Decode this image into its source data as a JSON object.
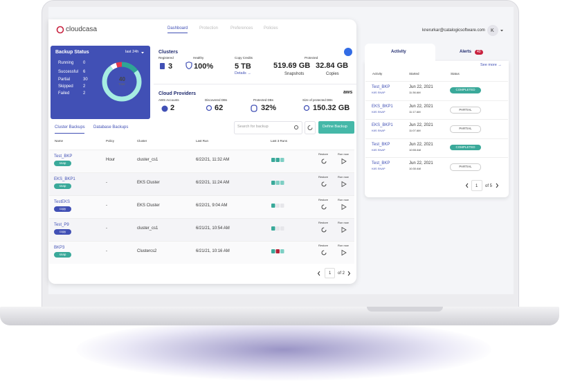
{
  "brand": "cloudcasa",
  "nav": [
    {
      "label": "Dashboard",
      "active": true
    },
    {
      "label": "Protection",
      "active": false
    },
    {
      "label": "Preferences",
      "active": false
    },
    {
      "label": "Policies",
      "active": false
    }
  ],
  "user": {
    "email": "knerurkar@catalogicsoftware.com",
    "initial": "K"
  },
  "backup_status": {
    "title": "Backup Status",
    "period": "last 24h",
    "total": 40,
    "total_label": "Total",
    "rows": [
      {
        "label": "Running",
        "value": 0,
        "color": "#f2c94c"
      },
      {
        "label": "Successful",
        "value": 6,
        "color": "#2fa595"
      },
      {
        "label": "Partial",
        "value": 30,
        "color": "#a6ede2"
      },
      {
        "label": "Skipped",
        "value": 2,
        "color": "#ffffff"
      },
      {
        "label": "Failed",
        "value": 2,
        "color": "#e5394d"
      }
    ]
  },
  "clusters": {
    "title": "Clusters",
    "stats": [
      {
        "label": "Registered",
        "value": "3"
      },
      {
        "label": "Healthy",
        "value": "100%"
      },
      {
        "label": "Copy Credits",
        "value": "5 TB",
        "link": "Details →"
      }
    ],
    "protected": {
      "label": "Protected",
      "snapshots": {
        "value": "519.69 GB",
        "label": "Snapshots"
      },
      "copies": {
        "value": "32.84 GB",
        "label": "Copies"
      }
    }
  },
  "cloud": {
    "title": "Cloud Providers",
    "logo": "aws",
    "stats": [
      {
        "label": "AWS Accounts",
        "value": "2"
      },
      {
        "label": "Discovered DBs",
        "value": "62"
      },
      {
        "label": "Protected DBs",
        "value": "32%"
      },
      {
        "label": "Size of protected DBs",
        "value": "150.32 GB"
      }
    ]
  },
  "backups": {
    "tabs": [
      "Cluster Backups",
      "Database Backups"
    ],
    "search_placeholder": "Search for backup",
    "button": "Define Backup",
    "columns": [
      "Name",
      "Policy",
      "Cluster",
      "Last Run",
      "Last 3 Runs"
    ],
    "actions": [
      "Restore",
      "Run now"
    ],
    "tag_colors": {
      "snap": "#3aa99a",
      "copy": "#4150b5"
    },
    "rows": [
      {
        "name": "Test_BKP",
        "tag": "snap",
        "policy": "Hour",
        "cluster": "cluster_cs1",
        "last_run": "6/22/21, 11:32 AM",
        "runs": [
          "#3aa99a",
          "#3aa99a",
          "#7fcfc4"
        ]
      },
      {
        "name": "EKS_BKP1",
        "tag": "snap",
        "policy": "-",
        "cluster": "EKS Cluster",
        "last_run": "6/22/21, 11:24 AM",
        "runs": [
          "#3aa99a",
          "#7fcfc4",
          "#7fcfc4"
        ]
      },
      {
        "name": "TestEKS",
        "tag": "copy",
        "policy": "-",
        "cluster": "EKS Cluster",
        "last_run": "6/22/21, 9:04 AM",
        "runs": [
          "#3aa99a",
          "#e6e6ea",
          "#e6e6ea"
        ]
      },
      {
        "name": "Test_P9",
        "tag": "copy",
        "policy": "-",
        "cluster": "cluster_cs1",
        "last_run": "6/21/21, 10:54 AM",
        "runs": [
          "#3aa99a",
          "#e6e6ea",
          "#e6e6ea"
        ]
      },
      {
        "name": "BKP3",
        "tag": "snap",
        "policy": "-",
        "cluster": "Clustercs2",
        "last_run": "6/21/21, 10:16 AM",
        "runs": [
          "#3aa99a",
          "#b3243a",
          "#7fcfc4"
        ]
      }
    ],
    "pagination": {
      "page": "1",
      "total": "of 2"
    }
  },
  "activity": {
    "tabs": [
      "Activity",
      "Alerts"
    ],
    "alerts_count": 40,
    "see_more": "See more →",
    "columns": [
      "Activity",
      "Started",
      "Status"
    ],
    "filled_status": {
      "COMPLETED": "#3aa99a"
    },
    "rows": [
      {
        "name": "Test_BKP",
        "kind": "K8S SNAP",
        "date": "Jun 22, 2021",
        "time": "11:36 AM",
        "status": "COMPLETED"
      },
      {
        "name": "EKS_BKP1",
        "kind": "K8S SNAP",
        "date": "Jun 22, 2021",
        "time": "11:17 AM",
        "status": "PARTIAL"
      },
      {
        "name": "EKS_BKP1",
        "kind": "K8S SNAP",
        "date": "Jun 22, 2021",
        "time": "11:07 AM",
        "status": "PARTIAL"
      },
      {
        "name": "Test_BKP",
        "kind": "K8S SNAP",
        "date": "Jun 22, 2021",
        "time": "10:55 AM",
        "status": "COMPLETED"
      },
      {
        "name": "Test_BKP",
        "kind": "K8S SNAP",
        "date": "Jun 22, 2021",
        "time": "10:30 AM",
        "status": "PARTIAL"
      }
    ],
    "pagination": {
      "page": "1",
      "total": "of 5"
    }
  }
}
